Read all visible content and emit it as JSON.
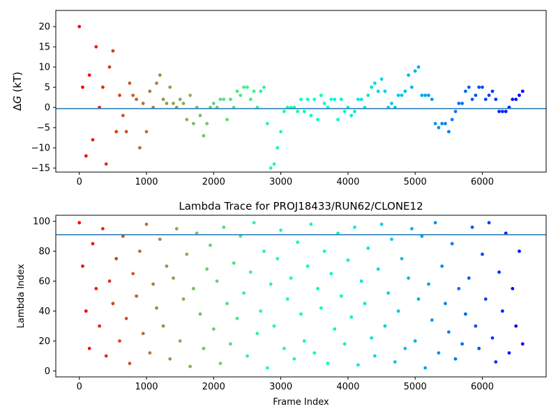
{
  "chart_data": [
    {
      "type": "scatter",
      "title": "",
      "xlabel": "",
      "ylabel": "ΔG (kT)",
      "ylabel_delta": "Δ",
      "ylabel_var": "G",
      "ylabel_unit": " (kT)",
      "xlim": [
        -350,
        6950
      ],
      "ylim": [
        -16,
        24
      ],
      "xticks": [
        0,
        1000,
        2000,
        3000,
        4000,
        5000,
        6000
      ],
      "xtick_labels": [
        "0",
        "1000",
        "2000",
        "3000",
        "4000",
        "5000",
        "6000"
      ],
      "yticks": [
        -15,
        -10,
        -5,
        0,
        5,
        10,
        15,
        20
      ],
      "ytick_labels": [
        "−15",
        "−10",
        "−5",
        "0",
        "5",
        "10",
        "15",
        "20"
      ],
      "hline": -0.3,
      "hline_color": "#1f77b4",
      "colormap": "rainbow (frame index: red at 0 → violet at 6600)",
      "points_x": [
        0,
        50,
        100,
        150,
        200,
        250,
        300,
        350,
        400,
        450,
        500,
        550,
        600,
        650,
        700,
        750,
        800,
        850,
        900,
        950,
        1000,
        1050,
        1100,
        1150,
        1200,
        1250,
        1300,
        1350,
        1400,
        1450,
        1500,
        1550,
        1600,
        1650,
        1700,
        1750,
        1800,
        1850,
        1900,
        1950,
        2000,
        2050,
        2100,
        2150,
        2200,
        2250,
        2300,
        2350,
        2400,
        2450,
        2500,
        2550,
        2600,
        2650,
        2700,
        2750,
        2800,
        2850,
        2900,
        2950,
        3000,
        3050,
        3100,
        3150,
        3200,
        3250,
        3300,
        3350,
        3400,
        3450,
        3500,
        3550,
        3600,
        3650,
        3700,
        3750,
        3800,
        3850,
        3900,
        3950,
        4000,
        4050,
        4100,
        4150,
        4200,
        4250,
        4300,
        4350,
        4400,
        4450,
        4500,
        4550,
        4600,
        4650,
        4700,
        4750,
        4800,
        4850,
        4900,
        4950,
        5000,
        5050,
        5100,
        5150,
        5200,
        5250,
        5300,
        5350,
        5400,
        5450,
        5500,
        5550,
        5600,
        5650,
        5700,
        5750,
        5800,
        5850,
        5900,
        5950,
        6000,
        6050,
        6100,
        6150,
        6200,
        6250,
        6300,
        6350,
        6400,
        6450,
        6500,
        6550,
        6600
      ],
      "points_y": [
        20,
        5,
        -12,
        8,
        -8,
        15,
        0,
        5,
        -14,
        10,
        14,
        -6,
        3,
        -2,
        -6,
        6,
        3,
        2,
        -10,
        1,
        -6,
        4,
        0,
        6,
        8,
        2,
        1,
        5,
        1,
        0,
        2,
        1,
        -3,
        3,
        -4,
        0,
        -2,
        -7,
        -4,
        0,
        1,
        0,
        2,
        2,
        -3,
        2,
        0,
        4,
        3,
        5,
        5,
        2,
        4,
        0,
        4,
        5,
        -4,
        -15,
        -14,
        -10,
        -6,
        -1,
        0,
        0,
        0,
        -1,
        2,
        -1,
        2,
        -2,
        2,
        -3,
        3,
        1,
        0,
        2,
        2,
        -3,
        2,
        -1,
        0,
        -2,
        -1,
        2,
        2,
        0,
        3,
        5,
        6,
        4,
        7,
        4,
        0,
        1,
        0,
        3,
        3,
        4,
        8,
        5,
        9,
        10,
        3,
        3,
        3,
        2,
        -4,
        -5,
        -4,
        -4,
        -6,
        -3,
        -1,
        1,
        1,
        4,
        5,
        2,
        3,
        5,
        5,
        2,
        3,
        4,
        2,
        -1,
        -1,
        -1,
        0,
        2,
        2,
        3,
        4
      ]
    },
    {
      "type": "scatter",
      "title": "Lambda Trace for PROJ18433/RUN62/CLONE12",
      "xlabel": "Frame Index",
      "ylabel": "Lambda Index",
      "xlim": [
        -350,
        6950
      ],
      "ylim": [
        -4,
        104
      ],
      "xticks": [
        0,
        1000,
        2000,
        3000,
        4000,
        5000,
        6000
      ],
      "xtick_labels": [
        "0",
        "1000",
        "2000",
        "3000",
        "4000",
        "5000",
        "6000"
      ],
      "yticks": [
        0,
        20,
        40,
        60,
        80,
        100
      ],
      "ytick_labels": [
        "0",
        "20",
        "40",
        "60",
        "80",
        "100"
      ],
      "hline": 91,
      "hline_color": "#1f77b4",
      "colormap": "rainbow (frame index: red at 0 → violet at 6600)",
      "points_x": [
        0,
        50,
        100,
        150,
        200,
        250,
        300,
        350,
        400,
        450,
        500,
        550,
        600,
        650,
        700,
        750,
        800,
        850,
        900,
        950,
        1000,
        1050,
        1100,
        1150,
        1200,
        1250,
        1300,
        1350,
        1400,
        1450,
        1500,
        1550,
        1600,
        1650,
        1700,
        1750,
        1800,
        1850,
        1900,
        1950,
        2000,
        2050,
        2100,
        2150,
        2200,
        2250,
        2300,
        2350,
        2400,
        2450,
        2500,
        2550,
        2600,
        2650,
        2700,
        2750,
        2800,
        2850,
        2900,
        2950,
        3000,
        3050,
        3100,
        3150,
        3200,
        3250,
        3300,
        3350,
        3400,
        3450,
        3500,
        3550,
        3600,
        3650,
        3700,
        3750,
        3800,
        3850,
        3900,
        3950,
        4000,
        4050,
        4100,
        4150,
        4200,
        4250,
        4300,
        4350,
        4400,
        4450,
        4500,
        4550,
        4600,
        4650,
        4700,
        4750,
        4800,
        4850,
        4900,
        4950,
        5000,
        5050,
        5100,
        5150,
        5200,
        5250,
        5300,
        5350,
        5400,
        5450,
        5500,
        5550,
        5600,
        5650,
        5700,
        5750,
        5800,
        5850,
        5900,
        5950,
        6000,
        6050,
        6100,
        6150,
        6200,
        6250,
        6300,
        6350,
        6400,
        6450,
        6500,
        6550,
        6600
      ],
      "points_y": [
        99,
        70,
        40,
        15,
        85,
        55,
        30,
        95,
        10,
        60,
        45,
        75,
        20,
        90,
        35,
        5,
        65,
        50,
        80,
        25,
        98,
        12,
        58,
        42,
        88,
        30,
        70,
        8,
        62,
        95,
        20,
        48,
        78,
        3,
        55,
        92,
        38,
        15,
        68,
        84,
        28,
        60,
        5,
        96,
        45,
        18,
        72,
        35,
        90,
        52,
        10,
        66,
        99,
        25,
        40,
        80,
        2,
        58,
        30,
        75,
        94,
        15,
        48,
        62,
        8,
        86,
        38,
        20,
        70,
        98,
        12,
        55,
        42,
        80,
        5,
        65,
        28,
        92,
        50,
        18,
        74,
        36,
        96,
        4,
        60,
        45,
        82,
        22,
        10,
        68,
        98,
        30,
        52,
        88,
        6,
        40,
        75,
        15,
        62,
        95,
        20,
        48,
        90,
        2,
        58,
        34,
        99,
        12,
        70,
        45,
        26,
        85,
        8,
        55,
        18,
        38,
        62,
        96,
        30,
        15,
        78,
        48,
        99,
        22,
        6,
        66,
        40,
        92,
        12,
        55,
        30,
        80,
        18
      ]
    }
  ]
}
